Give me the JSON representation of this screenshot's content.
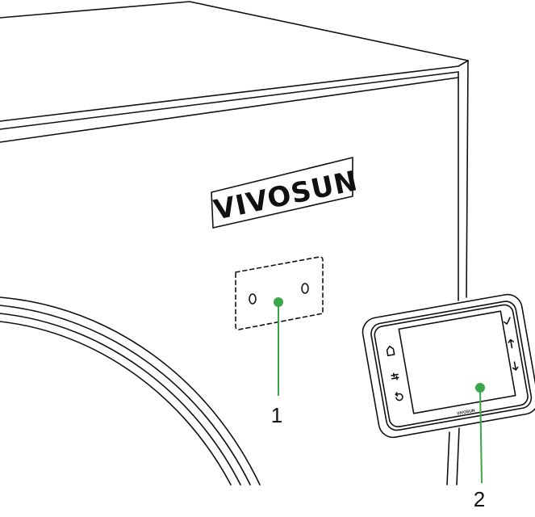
{
  "brand_logo": "VIVOSUN",
  "display_brand": "VIVOSUN",
  "callouts": [
    {
      "number": "1"
    },
    {
      "number": "2"
    }
  ],
  "display_buttons": {
    "left": [
      "home-icon",
      "adjust-icon",
      "back-icon"
    ],
    "right": [
      "check-icon",
      "up-arrow-icon",
      "down-arrow-icon"
    ]
  },
  "colors": {
    "callout": "#3aa64a",
    "line": "#111111"
  }
}
